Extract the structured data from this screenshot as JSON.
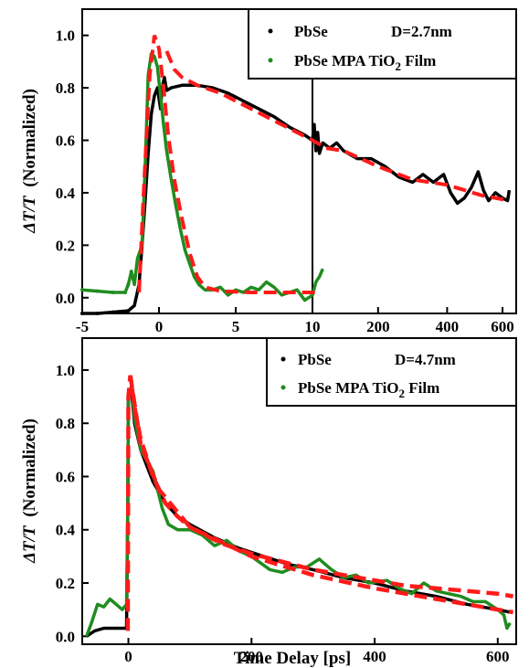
{
  "colors": {
    "black": "#000000",
    "green": "#1f8c1f",
    "red": "#ff1a1a",
    "axis": "#000000"
  },
  "chart_data": [
    {
      "panel": "top",
      "type": "scatter",
      "broken_x_axis": true,
      "segments": [
        {
          "xlim": [
            -5,
            10
          ],
          "ticks": [
            -5,
            0,
            5,
            10
          ]
        },
        {
          "xlim": [
            10,
            600
          ],
          "ticks": [
            10,
            200,
            400,
            600
          ]
        }
      ],
      "tick_labels_x": [
        "-5",
        "0",
        "5",
        "10",
        "200",
        "400",
        "600"
      ],
      "tick_labels_y": [
        "0.0",
        "0.2",
        "0.4",
        "0.6",
        "0.8",
        "1.0"
      ],
      "ylim": [
        -0.06,
        1.1
      ],
      "ylabel_prefix": "ΔT/T",
      "ylabel_suffix": "(Normalized)",
      "legend": {
        "position": "top-right",
        "entries": [
          {
            "label": "PbSe",
            "extra": "D=2.7nm",
            "color": "#000000"
          },
          {
            "label": "PbSe MPA TiO",
            "sub": "2",
            "post": " Film",
            "color": "#1f8c1f"
          }
        ]
      },
      "series": [
        {
          "name": "PbSe D=2.7nm",
          "color": "#000000",
          "style": "dots",
          "points": [
            [
              -5,
              -0.06
            ],
            [
              -4,
              -0.06
            ],
            [
              -3,
              -0.055
            ],
            [
              -2,
              -0.05
            ],
            [
              -1.6,
              -0.03
            ],
            [
              -1.3,
              0.05
            ],
            [
              -1.1,
              0.2
            ],
            [
              -0.9,
              0.37
            ],
            [
              -0.7,
              0.55
            ],
            [
              -0.5,
              0.7
            ],
            [
              -0.3,
              0.77
            ],
            [
              -0.1,
              0.8
            ],
            [
              0.1,
              0.72
            ],
            [
              0.2,
              0.8
            ],
            [
              0.35,
              0.84
            ],
            [
              0.5,
              0.79
            ],
            [
              0.8,
              0.8
            ],
            [
              1.5,
              0.81
            ],
            [
              2.5,
              0.81
            ],
            [
              3.5,
              0.8
            ],
            [
              4.5,
              0.78
            ],
            [
              5.5,
              0.75
            ],
            [
              6.5,
              0.72
            ],
            [
              7.5,
              0.69
            ],
            [
              8.5,
              0.65
            ],
            [
              9.5,
              0.62
            ],
            [
              10,
              0.6
            ],
            [
              15,
              0.66
            ],
            [
              20,
              0.56
            ],
            [
              25,
              0.63
            ],
            [
              30,
              0.55
            ],
            [
              40,
              0.59
            ],
            [
              60,
              0.57
            ],
            [
              80,
              0.59
            ],
            [
              100,
              0.56
            ],
            [
              140,
              0.53
            ],
            [
              180,
              0.53
            ],
            [
              220,
              0.5
            ],
            [
              260,
              0.46
            ],
            [
              300,
              0.44
            ],
            [
              330,
              0.47
            ],
            [
              360,
              0.44
            ],
            [
              390,
              0.47
            ],
            [
              410,
              0.4
            ],
            [
              430,
              0.36
            ],
            [
              450,
              0.38
            ],
            [
              470,
              0.42
            ],
            [
              490,
              0.48
            ],
            [
              505,
              0.41
            ],
            [
              520,
              0.37
            ],
            [
              540,
              0.4
            ],
            [
              560,
              0.38
            ],
            [
              575,
              0.37
            ],
            [
              580,
              0.41
            ]
          ]
        },
        {
          "name": "PbSe MPA TiO2 Film",
          "color": "#1f8c1f",
          "style": "dots",
          "points": [
            [
              -5,
              0.03
            ],
            [
              -4,
              0.025
            ],
            [
              -3,
              0.02
            ],
            [
              -2.2,
              0.02
            ],
            [
              -2,
              0.05
            ],
            [
              -1.8,
              0.1
            ],
            [
              -1.6,
              0.05
            ],
            [
              -1.4,
              0.15
            ],
            [
              -1.1,
              0.2
            ],
            [
              -0.9,
              0.5
            ],
            [
              -0.7,
              0.85
            ],
            [
              -0.5,
              0.93
            ],
            [
              -0.3,
              0.92
            ],
            [
              -0.1,
              0.88
            ],
            [
              0.1,
              0.77
            ],
            [
              0.3,
              0.66
            ],
            [
              0.5,
              0.56
            ],
            [
              0.8,
              0.45
            ],
            [
              1.1,
              0.35
            ],
            [
              1.4,
              0.26
            ],
            [
              1.7,
              0.18
            ],
            [
              2,
              0.13
            ],
            [
              2.3,
              0.08
            ],
            [
              2.6,
              0.05
            ],
            [
              3,
              0.03
            ],
            [
              3.5,
              0.03
            ],
            [
              4,
              0.04
            ],
            [
              4.5,
              0.01
            ],
            [
              5,
              0.03
            ],
            [
              5.5,
              0.02
            ],
            [
              6,
              0.04
            ],
            [
              6.5,
              0.03
            ],
            [
              7,
              0.06
            ],
            [
              7.5,
              0.04
            ],
            [
              8,
              0.01
            ],
            [
              8.5,
              0.02
            ],
            [
              9,
              0.03
            ],
            [
              9.5,
              -0.01
            ],
            [
              10,
              0.01
            ],
            [
              20,
              0.06
            ],
            [
              30,
              0.08
            ],
            [
              40,
              0.11
            ]
          ]
        },
        {
          "name": "fit",
          "color": "#ff1a1a",
          "style": "dashed",
          "points": [
            [
              -1.3,
              0.02
            ],
            [
              -1,
              0.4
            ],
            [
              -0.6,
              0.85
            ],
            [
              -0.3,
              1.0
            ],
            [
              0,
              0.95
            ],
            [
              0.3,
              0.8
            ],
            [
              0.6,
              0.62
            ],
            [
              1,
              0.45
            ],
            [
              1.5,
              0.3
            ],
            [
              2,
              0.17
            ],
            [
              2.5,
              0.08
            ],
            [
              3,
              0.04
            ],
            [
              4,
              0.025
            ],
            [
              6,
              0.02
            ],
            [
              10,
              0.02
            ],
            [
              30,
              0.02
            ]
          ]
        },
        {
          "name": "fit",
          "color": "#ff1a1a",
          "style": "dashed",
          "points": [
            [
              0.5,
              0.94
            ],
            [
              1,
              0.87
            ],
            [
              1.5,
              0.84
            ],
            [
              2.5,
              0.81
            ],
            [
              4,
              0.78
            ],
            [
              6,
              0.72
            ],
            [
              8,
              0.66
            ],
            [
              10,
              0.6
            ],
            [
              50,
              0.57
            ],
            [
              100,
              0.56
            ],
            [
              200,
              0.5
            ],
            [
              300,
              0.45
            ],
            [
              400,
              0.43
            ],
            [
              500,
              0.39
            ],
            [
              580,
              0.37
            ]
          ]
        }
      ]
    },
    {
      "panel": "bottom",
      "type": "scatter",
      "xlim": [
        -75,
        630
      ],
      "ylim": [
        -0.03,
        1.12
      ],
      "tick_labels_x": [
        "0",
        "200",
        "400",
        "600"
      ],
      "xticks": [
        0,
        200,
        400,
        600
      ],
      "tick_labels_y": [
        "0.0",
        "0.2",
        "0.4",
        "0.6",
        "0.8",
        "1.0"
      ],
      "xlabel": "Time Delay [ps]",
      "ylabel_prefix": "ΔT/T",
      "ylabel_suffix": "(Normalized)",
      "legend": {
        "position": "top-right",
        "entries": [
          {
            "label": "PbSe",
            "extra": "D=4.7nm",
            "color": "#000000"
          },
          {
            "label": "PbSe MPA TiO",
            "sub": "2",
            "post": " Film",
            "color": "#1f8c1f"
          }
        ]
      },
      "series": [
        {
          "name": "PbSe D=4.7nm",
          "color": "#000000",
          "style": "dots",
          "points": [
            [
              -68,
              0.0
            ],
            [
              -55,
              0.02
            ],
            [
              -40,
              0.03
            ],
            [
              -20,
              0.03
            ],
            [
              -3,
              0.03
            ],
            [
              -1,
              0.5
            ],
            [
              0,
              0.9
            ],
            [
              5,
              0.92
            ],
            [
              10,
              0.8
            ],
            [
              20,
              0.7
            ],
            [
              40,
              0.58
            ],
            [
              60,
              0.5
            ],
            [
              80,
              0.45
            ],
            [
              100,
              0.42
            ],
            [
              140,
              0.37
            ],
            [
              180,
              0.33
            ],
            [
              220,
              0.3
            ],
            [
              260,
              0.27
            ],
            [
              300,
              0.25
            ],
            [
              350,
              0.22
            ],
            [
              400,
              0.2
            ],
            [
              450,
              0.17
            ],
            [
              500,
              0.15
            ],
            [
              550,
              0.12
            ],
            [
              600,
              0.1
            ],
            [
              620,
              0.09
            ]
          ]
        },
        {
          "name": "PbSe MPA TiO2 Film",
          "color": "#1f8c1f",
          "style": "dots",
          "points": [
            [
              -68,
              0.0
            ],
            [
              -60,
              0.05
            ],
            [
              -50,
              0.12
            ],
            [
              -40,
              0.11
            ],
            [
              -30,
              0.14
            ],
            [
              -20,
              0.12
            ],
            [
              -10,
              0.1
            ],
            [
              -3,
              0.12
            ],
            [
              -1,
              0.5
            ],
            [
              0,
              0.9
            ],
            [
              5,
              0.94
            ],
            [
              10,
              0.82
            ],
            [
              20,
              0.7
            ],
            [
              40,
              0.62
            ],
            [
              55,
              0.48
            ],
            [
              65,
              0.42
            ],
            [
              80,
              0.4
            ],
            [
              100,
              0.4
            ],
            [
              120,
              0.38
            ],
            [
              140,
              0.34
            ],
            [
              160,
              0.36
            ],
            [
              180,
              0.32
            ],
            [
              200,
              0.3
            ],
            [
              230,
              0.25
            ],
            [
              250,
              0.24
            ],
            [
              270,
              0.26
            ],
            [
              290,
              0.26
            ],
            [
              310,
              0.29
            ],
            [
              330,
              0.25
            ],
            [
              350,
              0.22
            ],
            [
              370,
              0.23
            ],
            [
              390,
              0.2
            ],
            [
              420,
              0.21
            ],
            [
              440,
              0.18
            ],
            [
              460,
              0.16
            ],
            [
              480,
              0.2
            ],
            [
              500,
              0.17
            ],
            [
              520,
              0.16
            ],
            [
              540,
              0.15
            ],
            [
              560,
              0.13
            ],
            [
              580,
              0.13
            ],
            [
              600,
              0.1
            ],
            [
              610,
              0.08
            ],
            [
              615,
              0.03
            ],
            [
              620,
              0.05
            ]
          ]
        },
        {
          "name": "fit",
          "color": "#ff1a1a",
          "style": "dashed",
          "points": [
            [
              -1,
              0.02
            ],
            [
              0,
              0.9
            ],
            [
              3,
              0.98
            ],
            [
              10,
              0.86
            ],
            [
              20,
              0.74
            ],
            [
              40,
              0.6
            ],
            [
              60,
              0.5
            ],
            [
              80,
              0.45
            ],
            [
              100,
              0.41
            ],
            [
              150,
              0.35
            ],
            [
              200,
              0.31
            ],
            [
              250,
              0.28
            ],
            [
              300,
              0.25
            ],
            [
              350,
              0.23
            ],
            [
              400,
              0.21
            ],
            [
              450,
              0.19
            ],
            [
              500,
              0.18
            ],
            [
              550,
              0.17
            ],
            [
              600,
              0.16
            ],
            [
              625,
              0.15
            ]
          ]
        },
        {
          "name": "fit",
          "color": "#ff1a1a",
          "style": "dashed",
          "points": [
            [
              3,
              0.98
            ],
            [
              20,
              0.72
            ],
            [
              50,
              0.55
            ],
            [
              100,
              0.41
            ],
            [
              200,
              0.3
            ],
            [
              300,
              0.23
            ],
            [
              400,
              0.18
            ],
            [
              500,
              0.14
            ],
            [
              600,
              0.1
            ],
            [
              625,
              0.09
            ]
          ]
        }
      ]
    }
  ]
}
